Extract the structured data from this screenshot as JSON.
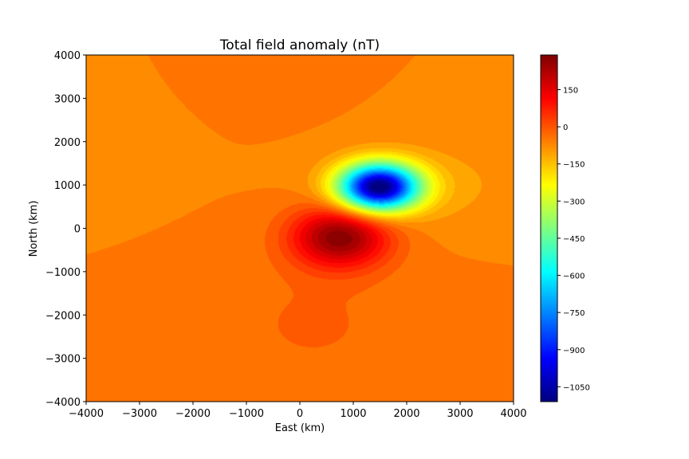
{
  "chart_data": {
    "type": "heatmap",
    "title": "Total field anomaly (nT)",
    "xlabel": "East (km)",
    "ylabel": "North (km)",
    "xlim": [
      -4000,
      4000
    ],
    "ylim": [
      -4000,
      4000
    ],
    "x_ticks": [
      -4000,
      -3000,
      -2000,
      -1000,
      0,
      1000,
      2000,
      3000,
      4000
    ],
    "y_ticks": [
      -4000,
      -3000,
      -2000,
      -1000,
      0,
      1000,
      2000,
      3000,
      4000
    ],
    "x_tick_labels": [
      "−4000",
      "−3000",
      "−2000",
      "−1000",
      "0",
      "1000",
      "2000",
      "3000",
      "4000"
    ],
    "y_tick_labels": [
      "−4000",
      "−3000",
      "−2000",
      "−1000",
      "0",
      "1000",
      "2000",
      "3000",
      "4000"
    ],
    "colorbar": {
      "colormap": "jet",
      "vmin": -1110,
      "vmax": 290,
      "ticks": [
        150,
        0,
        -150,
        -300,
        -450,
        -600,
        -750,
        -900,
        -1050
      ],
      "tick_labels": [
        "150",
        "0",
        "−150",
        "−300",
        "−450",
        "−600",
        "−750",
        "−900",
        "−1050"
      ]
    },
    "features": [
      {
        "kind": "minimum",
        "x": 1480,
        "y": 950,
        "value": -1100
      },
      {
        "kind": "maximum",
        "x": 750,
        "y": -200,
        "value": 280
      }
    ],
    "background_value": -60,
    "grid": false
  }
}
